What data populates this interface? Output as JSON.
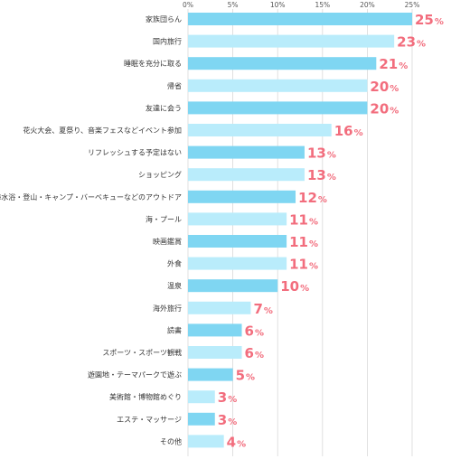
{
  "chart_data": {
    "type": "bar",
    "orientation": "horizontal",
    "categories": [
      "家族団らん",
      "国内旅行",
      "睡眠を充分に取る",
      "帰省",
      "友達に会う",
      "花火大会、夏祭り、音楽フェスなどイベント参加",
      "リフレッシュする予定はない",
      "ショッピング",
      "海水浴・登山・キャンプ・バーベキューなどのアウトドア",
      "海・プール",
      "映画鑑賞",
      "外食",
      "温泉",
      "海外旅行",
      "読書",
      "スポーツ・スポーツ観戦",
      "遊園地・テーマパークで遊ぶ",
      "美術館・博物館めぐり",
      "エステ・マッサージ",
      "その他"
    ],
    "values": [
      25,
      23,
      21,
      20,
      20,
      16,
      13,
      13,
      12,
      11,
      11,
      11,
      10,
      7,
      6,
      6,
      5,
      3,
      3,
      4
    ],
    "value_suffix": "%",
    "x_ticks": [
      "0%",
      "5%",
      "10%",
      "15%",
      "20%",
      "25%"
    ],
    "xlim": [
      0,
      25
    ],
    "grid": true,
    "colors": {
      "bar_dark": "#7fd6f2",
      "bar_light": "#b9ecfb",
      "value_label": "#f26d7d",
      "grid": "#d8d8d8"
    }
  }
}
